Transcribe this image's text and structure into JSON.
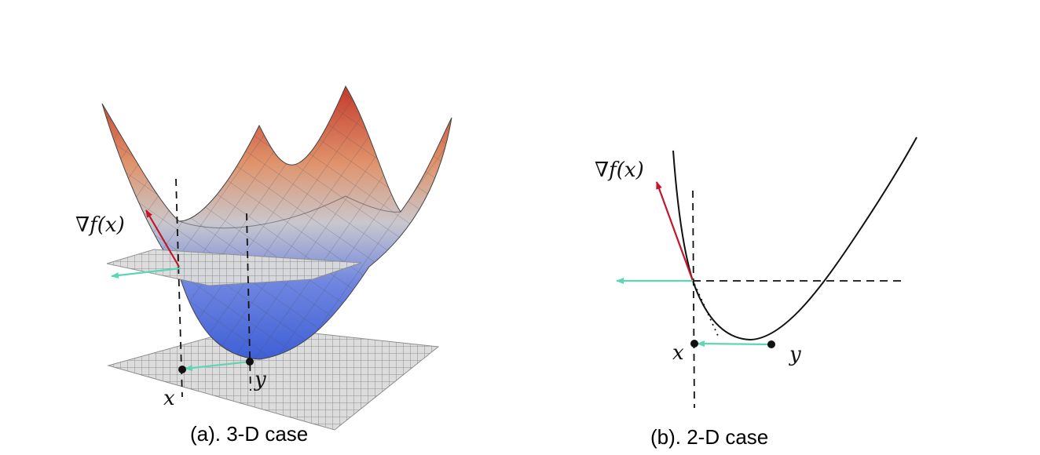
{
  "panel_a": {
    "caption": "(a). 3-D case",
    "grad_label": "∇f(x)",
    "label_x": "x",
    "label_y": "y"
  },
  "panel_b": {
    "caption": "(b). 2-D case",
    "grad_label": "∇f(x)",
    "label_x": "x",
    "label_y": "y"
  },
  "colors": {
    "gradient_arrow": "#c0172b",
    "descent_arrow": "#5cd6b4",
    "surface_low": "#3e5fd6",
    "surface_mid": "#c9c7cc",
    "surface_high": "#c43a2b",
    "grid_plane": "#9a9a9a"
  }
}
